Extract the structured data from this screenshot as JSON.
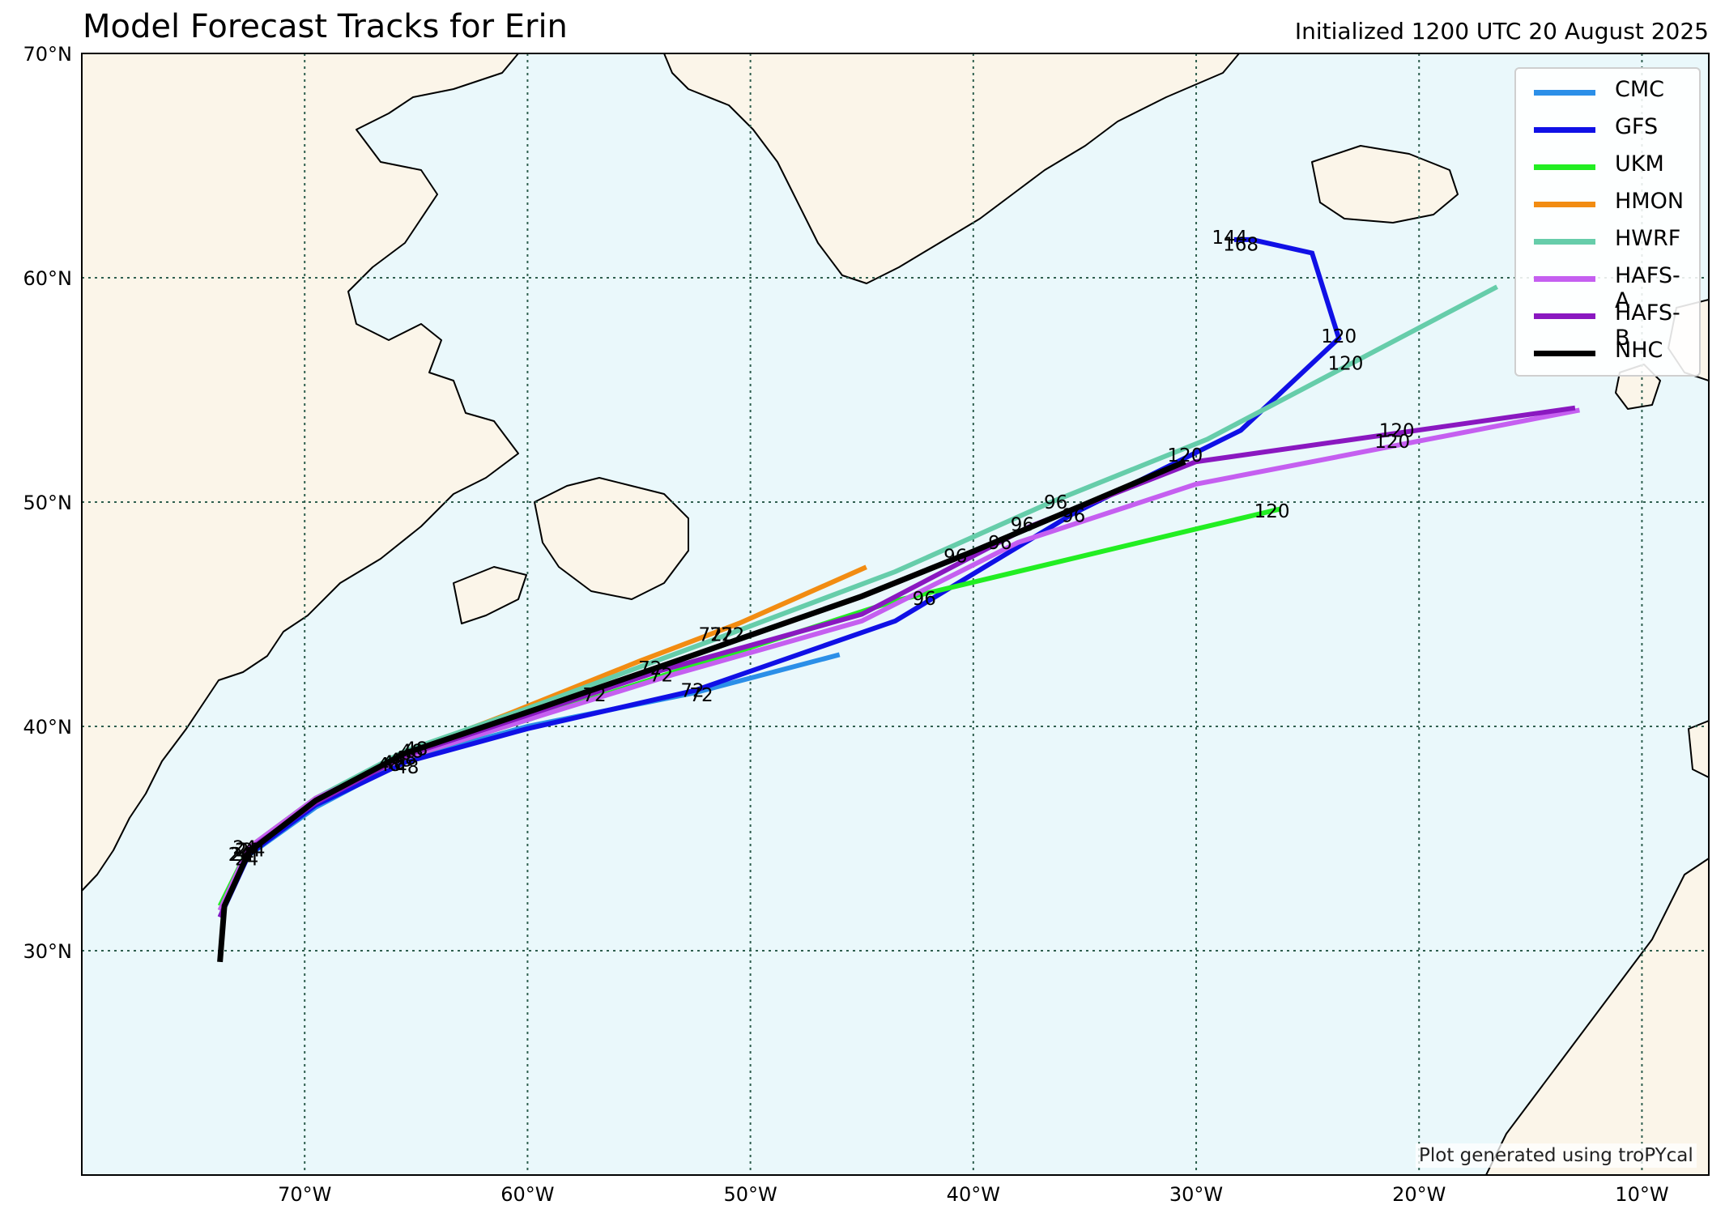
{
  "title": "Model Forecast Tracks for Erin",
  "subtitle": "Initialized 1200 UTC 20 August 2025",
  "credit": "Plot generated using troPYcal",
  "colors": {
    "ocean": "#eaf8fb",
    "land": "#fbf5e9",
    "coast": "#000000",
    "grid": "#2f5f4f"
  },
  "map": {
    "lon_range": [
      -80,
      -7
    ],
    "lat_range": [
      20,
      70
    ],
    "lon_ticks": [
      {
        "lon": -70,
        "label": "70°W"
      },
      {
        "lon": -60,
        "label": "60°W"
      },
      {
        "lon": -50,
        "label": "50°W"
      },
      {
        "lon": -40,
        "label": "40°W"
      },
      {
        "lon": -30,
        "label": "30°W"
      },
      {
        "lon": -20,
        "label": "20°W"
      },
      {
        "lon": -10,
        "label": "10°W"
      }
    ],
    "lat_ticks": [
      {
        "lat": 70,
        "label": "70°N"
      },
      {
        "lat": 60,
        "label": "60°N"
      },
      {
        "lat": 50,
        "label": "50°N"
      },
      {
        "lat": 40,
        "label": "40°N"
      },
      {
        "lat": 30,
        "label": "30°N"
      }
    ],
    "gridlines": "dotted"
  },
  "legend": {
    "placement": "top-right",
    "items": [
      {
        "name": "CMC",
        "color": "#2b8fe8"
      },
      {
        "name": "GFS",
        "color": "#1010e6"
      },
      {
        "name": "UKM",
        "color": "#22ee22"
      },
      {
        "name": "HMON",
        "color": "#f28c12"
      },
      {
        "name": "HWRF",
        "color": "#66cdaa"
      },
      {
        "name": "HAFS-A",
        "color": "#c55ff0"
      },
      {
        "name": "HAFS-B",
        "color": "#8a18c0"
      },
      {
        "name": "NHC",
        "color": "#000000"
      }
    ]
  },
  "tracks": [
    {
      "model": "CMC",
      "color": "#2b8fe8",
      "points": [
        [
          -73.8,
          31.5
        ],
        [
          -72.6,
          34.2
        ],
        [
          -69.5,
          36.4
        ],
        [
          -65.5,
          38.5
        ],
        [
          -60,
          40.0
        ],
        [
          -52.5,
          41.5
        ],
        [
          -46,
          43.2
        ]
      ],
      "labels": [
        {
          "text": "24",
          "lon": -72.8,
          "lat": 34.3
        },
        {
          "text": "48",
          "lon": -66.2,
          "lat": 38.3
        },
        {
          "text": "72",
          "lon": -52.6,
          "lat": 41.6
        }
      ]
    },
    {
      "model": "GFS",
      "color": "#1010e6",
      "points": [
        [
          -73.8,
          31.5
        ],
        [
          -72.5,
          34.3
        ],
        [
          -69.5,
          36.5
        ],
        [
          -65.5,
          38.4
        ],
        [
          -60,
          39.9
        ],
        [
          -52.5,
          41.6
        ],
        [
          -43.5,
          44.7
        ],
        [
          -35.5,
          49.5
        ],
        [
          -28,
          53.2
        ],
        [
          -23.6,
          57.3
        ],
        [
          -24.8,
          61.1
        ],
        [
          -27.5,
          61.7
        ],
        [
          -28.3,
          61.7
        ]
      ],
      "labels": [
        {
          "text": "24",
          "lon": -72.6,
          "lat": 34.1
        },
        {
          "text": "48",
          "lon": -65.4,
          "lat": 38.2
        },
        {
          "text": "72",
          "lon": -52.2,
          "lat": 41.4
        },
        {
          "text": "96",
          "lon": -35.5,
          "lat": 49.4
        },
        {
          "text": "120",
          "lon": -23.6,
          "lat": 57.4
        },
        {
          "text": "144",
          "lon": -28.5,
          "lat": 61.8
        },
        {
          "text": "168",
          "lon": -28.0,
          "lat": 61.5
        }
      ]
    },
    {
      "model": "UKM",
      "color": "#22ee22",
      "points": [
        [
          -73.8,
          32.0
        ],
        [
          -72.5,
          34.6
        ],
        [
          -69.5,
          36.8
        ],
        [
          -65.5,
          38.6
        ],
        [
          -60,
          40.3
        ],
        [
          -53.5,
          42.4
        ],
        [
          -43.5,
          45.6
        ],
        [
          -30,
          48.8
        ],
        [
          -26.2,
          49.7
        ]
      ],
      "labels": [
        {
          "text": "24",
          "lon": -72.6,
          "lat": 34.5
        },
        {
          "text": "48",
          "lon": -65.5,
          "lat": 38.6
        },
        {
          "text": "72",
          "lon": -54.0,
          "lat": 42.3
        },
        {
          "text": "96",
          "lon": -42.2,
          "lat": 45.7
        },
        {
          "text": "120",
          "lon": -26.6,
          "lat": 49.6
        }
      ]
    },
    {
      "model": "HMON",
      "color": "#f28c12",
      "points": [
        [
          -73.8,
          31.8
        ],
        [
          -72.5,
          34.6
        ],
        [
          -69.5,
          36.8
        ],
        [
          -65.5,
          38.8
        ],
        [
          -61,
          40.5
        ],
        [
          -55,
          42.9
        ],
        [
          -50.5,
          44.6
        ],
        [
          -44.8,
          47.1
        ]
      ],
      "labels": [
        {
          "text": "72",
          "lon": -51.3,
          "lat": 44.1
        }
      ]
    },
    {
      "model": "HWRF",
      "color": "#66cdaa",
      "points": [
        [
          -73.8,
          31.8
        ],
        [
          -72.5,
          34.6
        ],
        [
          -69.5,
          36.8
        ],
        [
          -65.5,
          38.9
        ],
        [
          -60,
          40.8
        ],
        [
          -51,
          44.1
        ],
        [
          -43.5,
          46.9
        ],
        [
          -36.5,
          50.0
        ],
        [
          -29.5,
          52.8
        ],
        [
          -16.5,
          59.6
        ]
      ],
      "labels": [
        {
          "text": "24",
          "lon": -72.7,
          "lat": 34.6
        },
        {
          "text": "48",
          "lon": -65.2,
          "lat": 38.9
        },
        {
          "text": "72",
          "lon": -50.8,
          "lat": 44.1
        },
        {
          "text": "96",
          "lon": -36.3,
          "lat": 50.0
        },
        {
          "text": "120",
          "lon": -23.3,
          "lat": 56.2
        }
      ]
    },
    {
      "model": "HAFS-A",
      "color": "#c55ff0",
      "points": [
        [
          -73.8,
          31.8
        ],
        [
          -72.5,
          34.6
        ],
        [
          -69.5,
          36.8
        ],
        [
          -65.5,
          38.6
        ],
        [
          -60,
          40.3
        ],
        [
          -53.5,
          42.3
        ],
        [
          -45,
          44.7
        ],
        [
          -38,
          48.2
        ],
        [
          -30,
          50.8
        ],
        [
          -12.8,
          54.1
        ]
      ],
      "labels": [
        {
          "text": "24",
          "lon": -72.3,
          "lat": 34.5
        },
        {
          "text": "48",
          "lon": -65.7,
          "lat": 38.5
        },
        {
          "text": "72",
          "lon": -57.0,
          "lat": 41.4
        },
        {
          "text": "96",
          "lon": -38.8,
          "lat": 48.2
        },
        {
          "text": "120",
          "lon": -21.2,
          "lat": 52.7
        }
      ]
    },
    {
      "model": "HAFS-B",
      "color": "#8a18c0",
      "points": [
        [
          -73.8,
          31.5
        ],
        [
          -72.5,
          34.5
        ],
        [
          -69.5,
          36.6
        ],
        [
          -65.5,
          38.7
        ],
        [
          -60,
          40.5
        ],
        [
          -54,
          42.5
        ],
        [
          -45,
          45.0
        ],
        [
          -37.5,
          48.9
        ],
        [
          -30,
          51.8
        ],
        [
          -13,
          54.2
        ]
      ],
      "labels": [
        {
          "text": "24",
          "lon": -72.5,
          "lat": 34.5
        },
        {
          "text": "48",
          "lon": -66.0,
          "lat": 38.4
        },
        {
          "text": "72",
          "lon": -54.5,
          "lat": 42.6
        },
        {
          "text": "96",
          "lon": -37.8,
          "lat": 49.0
        },
        {
          "text": "120",
          "lon": -21.0,
          "lat": 53.2
        }
      ]
    },
    {
      "model": "NHC",
      "color": "#000000",
      "points": [
        [
          -73.8,
          29.5
        ],
        [
          -73.6,
          32.0
        ],
        [
          -72.5,
          34.4
        ],
        [
          -69.5,
          36.7
        ],
        [
          -65.5,
          38.8
        ],
        [
          -59.5,
          40.8
        ],
        [
          -52.5,
          43.2
        ],
        [
          -45,
          45.8
        ],
        [
          -40,
          47.8
        ],
        [
          -35,
          49.9
        ],
        [
          -30.5,
          51.8
        ]
      ],
      "labels": [
        {
          "text": "24",
          "lon": -72.9,
          "lat": 34.3
        },
        {
          "text": "48",
          "lon": -65.0,
          "lat": 39.0
        },
        {
          "text": "72",
          "lon": -51.8,
          "lat": 44.1
        },
        {
          "text": "96",
          "lon": -40.8,
          "lat": 47.6
        },
        {
          "text": "120",
          "lon": -30.5,
          "lat": 52.1
        }
      ]
    }
  ]
}
